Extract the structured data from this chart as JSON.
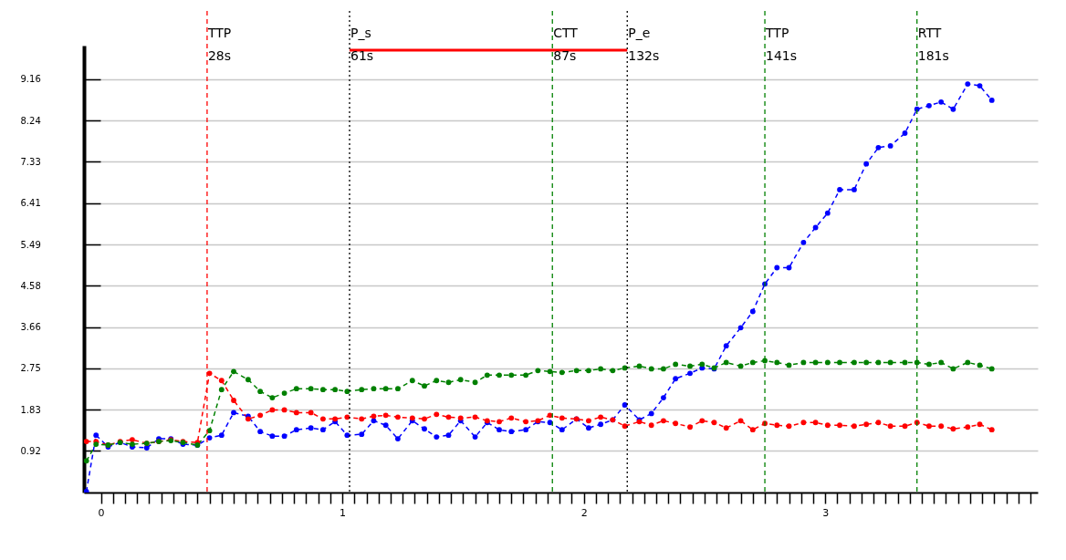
{
  "chart_data": {
    "type": "line",
    "x": [
      -0.06,
      -0.02,
      0.03,
      0.08,
      0.13,
      0.19,
      0.24,
      0.29,
      0.34,
      0.4,
      0.45,
      0.5,
      0.55,
      0.61,
      0.66,
      0.71,
      0.76,
      0.81,
      0.87,
      0.92,
      0.97,
      1.02,
      1.08,
      1.13,
      1.18,
      1.23,
      1.29,
      1.34,
      1.39,
      1.44,
      1.49,
      1.55,
      1.6,
      1.65,
      1.7,
      1.76,
      1.81,
      1.86,
      1.91,
      1.97,
      2.02,
      2.07,
      2.12,
      2.17,
      2.23,
      2.28,
      2.33,
      2.38,
      2.44,
      2.49,
      2.54,
      2.59,
      2.65,
      2.7,
      2.75,
      2.8,
      2.85,
      2.91,
      2.96,
      3.01,
      3.06,
      3.12,
      3.17,
      3.22,
      3.27,
      3.33,
      3.38,
      3.43,
      3.48,
      3.53,
      3.59,
      3.64,
      3.69
    ],
    "series": [
      {
        "color": "#0000ff",
        "values": [
          0.02,
          1.27,
          1.01,
          1.11,
          1.01,
          0.99,
          1.19,
          1.19,
          1.07,
          1.05,
          1.21,
          1.27,
          1.77,
          1.69,
          1.35,
          1.25,
          1.25,
          1.39,
          1.43,
          1.39,
          1.57,
          1.27,
          1.29,
          1.59,
          1.49,
          1.19,
          1.59,
          1.41,
          1.23,
          1.27,
          1.59,
          1.23,
          1.55,
          1.39,
          1.35,
          1.39,
          1.57,
          1.55,
          1.39,
          1.63,
          1.43,
          1.51,
          1.61,
          1.94,
          1.61,
          1.75,
          2.1,
          2.52,
          2.64,
          2.76,
          2.74,
          3.25,
          3.65,
          4.01,
          4.62,
          4.98,
          4.98,
          5.54,
          5.87,
          6.19,
          6.71,
          6.71,
          7.28,
          7.64,
          7.68,
          7.96,
          8.49,
          8.57,
          8.65,
          8.49,
          9.05,
          9.01,
          8.69
        ]
      },
      {
        "color": "#ff0000",
        "values": [
          1.13,
          1.13,
          1.05,
          1.13,
          1.17,
          1.09,
          1.13,
          1.17,
          1.13,
          1.11,
          2.64,
          2.48,
          2.04,
          1.63,
          1.71,
          1.83,
          1.83,
          1.77,
          1.77,
          1.63,
          1.63,
          1.67,
          1.63,
          1.69,
          1.71,
          1.67,
          1.65,
          1.63,
          1.73,
          1.67,
          1.65,
          1.67,
          1.59,
          1.57,
          1.65,
          1.57,
          1.59,
          1.71,
          1.65,
          1.63,
          1.59,
          1.67,
          1.61,
          1.47,
          1.57,
          1.49,
          1.59,
          1.53,
          1.45,
          1.59,
          1.55,
          1.43,
          1.59,
          1.39,
          1.53,
          1.49,
          1.47,
          1.55,
          1.55,
          1.49,
          1.49,
          1.47,
          1.51,
          1.55,
          1.47,
          1.47,
          1.55,
          1.47,
          1.47,
          1.41,
          1.45,
          1.51,
          1.39
        ]
      },
      {
        "type": "line",
        "x": [
          1.03,
          2.18
        ],
        "values": [
          9.8,
          9.8
        ],
        "color": "#ff0000",
        "marker": "none",
        "line_style": "solid"
      },
      {
        "color": "#008000",
        "values": [
          0.7,
          1.07,
          1.05,
          1.11,
          1.07,
          1.09,
          1.13,
          1.15,
          1.11,
          1.05,
          1.37,
          2.28,
          2.68,
          2.5,
          2.24,
          2.1,
          2.2,
          2.3,
          2.3,
          2.28,
          2.28,
          2.24,
          2.28,
          2.3,
          2.3,
          2.3,
          2.48,
          2.36,
          2.48,
          2.44,
          2.5,
          2.44,
          2.6,
          2.6,
          2.6,
          2.6,
          2.7,
          2.68,
          2.66,
          2.7,
          2.7,
          2.74,
          2.7,
          2.76,
          2.8,
          2.74,
          2.74,
          2.84,
          2.8,
          2.84,
          2.76,
          2.88,
          2.8,
          2.88,
          2.92,
          2.88,
          2.82,
          2.88,
          2.88,
          2.88,
          2.88,
          2.88,
          2.88,
          2.88,
          2.88,
          2.88,
          2.88,
          2.84,
          2.88,
          2.74,
          2.88,
          2.82,
          2.74
        ]
      }
    ],
    "xlim": [
      -0.07,
      3.88
    ],
    "ylim": [
      0,
      9.9
    ],
    "xticks": [
      0,
      {
        "value": 0.05,
        "label": null
      },
      {
        "value": 0.1,
        "label": null
      },
      {
        "value": 0.15,
        "label": null
      },
      {
        "value": 0.2,
        "label": null
      },
      {
        "value": 0.25,
        "label": null
      },
      {
        "value": 0.3,
        "label": null
      },
      {
        "value": 0.35,
        "label": null
      },
      {
        "value": 0.4,
        "label": null
      },
      {
        "value": 0.45,
        "label": null
      },
      {
        "value": 0.5,
        "label": null
      },
      {
        "value": 0.55,
        "label": null
      },
      {
        "value": 0.6,
        "label": null
      },
      {
        "value": 0.65,
        "label": null
      },
      {
        "value": 0.7,
        "label": null
      },
      {
        "value": 0.75,
        "label": null
      },
      {
        "value": 0.8,
        "label": null
      },
      {
        "value": 0.85,
        "label": null
      },
      {
        "value": 0.9,
        "label": null
      },
      {
        "value": 0.95,
        "label": null
      },
      1,
      {
        "value": 1.05,
        "label": null
      },
      {
        "value": 1.1,
        "label": null
      },
      {
        "value": 1.15,
        "label": null
      },
      {
        "value": 1.2,
        "label": null
      },
      {
        "value": 1.25,
        "label": null
      },
      {
        "value": 1.3,
        "label": null
      },
      {
        "value": 1.35,
        "label": null
      },
      {
        "value": 1.4,
        "label": null
      },
      {
        "value": 1.45,
        "label": null
      },
      {
        "value": 1.5,
        "label": null
      },
      {
        "value": 1.55,
        "label": null
      },
      {
        "value": 1.6,
        "label": null
      },
      {
        "value": 1.65,
        "label": null
      },
      {
        "value": 1.7,
        "label": null
      },
      {
        "value": 1.75,
        "label": null
      },
      {
        "value": 1.8,
        "label": null
      },
      {
        "value": 1.85,
        "label": null
      },
      {
        "value": 1.9,
        "label": null
      },
      {
        "value": 1.95,
        "label": null
      },
      2,
      {
        "value": 2.05,
        "label": null
      },
      {
        "value": 2.1,
        "label": null
      },
      {
        "value": 2.15,
        "label": null
      },
      {
        "value": 2.2,
        "label": null
      },
      {
        "value": 2.25,
        "label": null
      },
      {
        "value": 2.3,
        "label": null
      },
      {
        "value": 2.35,
        "label": null
      },
      {
        "value": 2.4,
        "label": null
      },
      {
        "value": 2.45,
        "label": null
      },
      {
        "value": 2.5,
        "label": null
      },
      {
        "value": 2.55,
        "label": null
      },
      {
        "value": 2.6,
        "label": null
      },
      {
        "value": 2.65,
        "label": null
      },
      {
        "value": 2.7,
        "label": null
      },
      {
        "value": 2.75,
        "label": null
      },
      {
        "value": 2.8,
        "label": null
      },
      {
        "value": 2.85,
        "label": null
      },
      {
        "value": 2.9,
        "label": null
      },
      {
        "value": 2.95,
        "label": null
      },
      3,
      {
        "value": 3.05,
        "label": null
      },
      {
        "value": 3.1,
        "label": null
      },
      {
        "value": 3.15,
        "label": null
      },
      {
        "value": 3.2,
        "label": null
      },
      {
        "value": 3.25,
        "label": null
      },
      {
        "value": 3.3,
        "label": null
      },
      {
        "value": 3.35,
        "label": null
      },
      {
        "value": 3.4,
        "label": null
      },
      {
        "value": 3.45,
        "label": null
      },
      {
        "value": 3.5,
        "label": null
      },
      {
        "value": 3.55,
        "label": null
      },
      {
        "value": 3.6,
        "label": null
      },
      {
        "value": 3.65,
        "label": null
      },
      {
        "value": 3.7,
        "label": null
      },
      {
        "value": 3.75,
        "label": null
      },
      {
        "value": 3.8,
        "label": null
      },
      {
        "value": 3.85,
        "label": null
      }
    ],
    "yticks": [
      0.92,
      1.83,
      2.75,
      3.66,
      4.58,
      5.49,
      6.41,
      7.33,
      8.24,
      9.16
    ],
    "grid": "y",
    "marker": "circle",
    "line_style": "dashed",
    "ref_lines": [
      {
        "axis": "x",
        "value": 0.44,
        "label": "TTP\n28s",
        "color": "#ff0000",
        "line_style": "dashed"
      },
      {
        "axis": "x",
        "value": 1.03,
        "label": "P_s\n61s",
        "color": "#000000",
        "line_style": "dotted"
      },
      {
        "axis": "x",
        "value": 1.87,
        "label": "CTT\n87s",
        "color": "#008000",
        "line_style": "dashed"
      },
      {
        "axis": "x",
        "value": 2.18,
        "label": "P_e\n132s",
        "color": "#000000",
        "line_style": "dotted"
      },
      {
        "axis": "x",
        "value": 2.75,
        "label": "TTP\n141s",
        "color": "#008000",
        "line_style": "dashed"
      },
      {
        "axis": "x",
        "value": 3.38,
        "label": "RTT\n181s",
        "color": "#008000",
        "line_style": "dashed"
      }
    ]
  }
}
